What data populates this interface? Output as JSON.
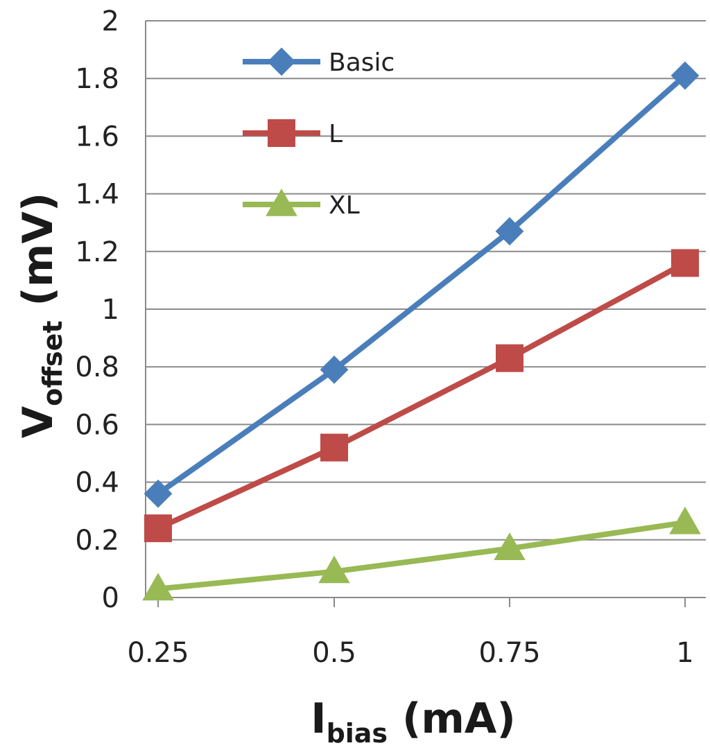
{
  "chart_data": {
    "type": "line",
    "x": [
      0.25,
      0.5,
      0.75,
      1
    ],
    "x_tick_labels": [
      "0.25",
      "0.5",
      "0.75",
      "1"
    ],
    "ylim": [
      0,
      2
    ],
    "y_ticks": [
      0,
      0.2,
      0.4,
      0.6,
      0.8,
      1,
      1.2,
      1.4,
      1.6,
      1.8,
      2
    ],
    "y_tick_labels": [
      "0",
      "0.2",
      "0.4",
      "0.6",
      "0.8",
      "1",
      "1.2",
      "1.4",
      "1.6",
      "1.8",
      "2"
    ],
    "grid": "horizontal",
    "legend_position": "top-left",
    "xlabel": {
      "main": "I",
      "sub": "bias",
      "rest": " (mA)"
    },
    "ylabel": {
      "main": "V",
      "sub": "offset",
      "rest": " (mV)"
    },
    "series": [
      {
        "name": "Basic",
        "color": "#4a7ebb",
        "marker": "diamond",
        "values": [
          0.36,
          0.79,
          1.27,
          1.81
        ]
      },
      {
        "name": "L",
        "color": "#be4b48",
        "marker": "square",
        "values": [
          0.24,
          0.52,
          0.83,
          1.16
        ]
      },
      {
        "name": "XL",
        "color": "#98b954",
        "marker": "triangle",
        "values": [
          0.03,
          0.09,
          0.17,
          0.26
        ]
      }
    ]
  }
}
